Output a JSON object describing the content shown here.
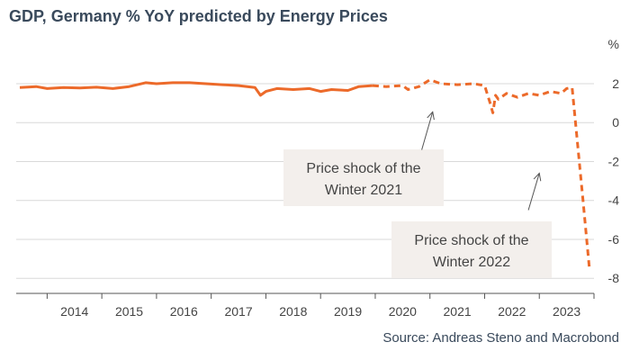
{
  "title": "GDP, Germany % YoY predicted by Energy Prices",
  "source": "Source: Andreas Steno and Macrobond",
  "chart_data": {
    "type": "line",
    "unit": "%",
    "xlim": [
      2013.5,
      2024.0
    ],
    "ylim": [
      -8.5,
      2.6
    ],
    "y_ticks": [
      2,
      0,
      -2,
      -4,
      -6,
      -8
    ],
    "x_ticks": [
      2014,
      2015,
      2016,
      2017,
      2018,
      2019,
      2020,
      2021,
      2022,
      2023
    ],
    "grid": "horizontal",
    "line_color": "#ec6a2a",
    "series": [
      {
        "style": "solid",
        "x": [
          2013.5,
          2013.8,
          2014.0,
          2014.3,
          2014.6,
          2014.9,
          2015.2,
          2015.5,
          2015.8,
          2016.0,
          2016.3,
          2016.6,
          2016.9,
          2017.2,
          2017.5,
          2017.8,
          2017.9,
          2018.0,
          2018.2,
          2018.5,
          2018.8,
          2019.0,
          2019.2,
          2019.5,
          2019.7,
          2019.95
        ],
        "y": [
          1.8,
          1.85,
          1.75,
          1.8,
          1.78,
          1.82,
          1.75,
          1.85,
          2.05,
          2.0,
          2.05,
          2.05,
          2.0,
          1.95,
          1.9,
          1.8,
          1.4,
          1.6,
          1.75,
          1.7,
          1.75,
          1.6,
          1.7,
          1.65,
          1.85,
          1.9
        ]
      },
      {
        "style": "dashed",
        "x": [
          2019.95,
          2020.2,
          2020.5,
          2020.6,
          2020.8,
          2021.0,
          2021.2,
          2021.5,
          2021.8,
          2022.0,
          2022.1,
          2022.15,
          2022.2,
          2022.25,
          2022.4,
          2022.6,
          2022.8,
          2023.0,
          2023.2,
          2023.4,
          2023.5,
          2023.6,
          2023.8,
          2023.92
        ],
        "y": [
          1.9,
          1.85,
          1.9,
          1.7,
          1.85,
          2.2,
          2.0,
          1.95,
          2.0,
          1.9,
          1.0,
          0.5,
          1.4,
          1.2,
          1.5,
          1.3,
          1.5,
          1.4,
          1.6,
          1.5,
          1.75,
          1.8,
          -4.0,
          -7.6
        ]
      }
    ],
    "annotations": [
      {
        "text_lines": [
          "Price shock of the",
          "Winter 2021"
        ],
        "target_x": 2021.05,
        "target_y": 0.55,
        "from_x": 2020.85,
        "from_y": -1.4
      },
      {
        "text_lines": [
          "Price shock of the",
          "Winter 2022"
        ],
        "target_x": 2023.0,
        "target_y": -2.6,
        "from_x": 2022.8,
        "from_y": -4.5
      }
    ]
  }
}
